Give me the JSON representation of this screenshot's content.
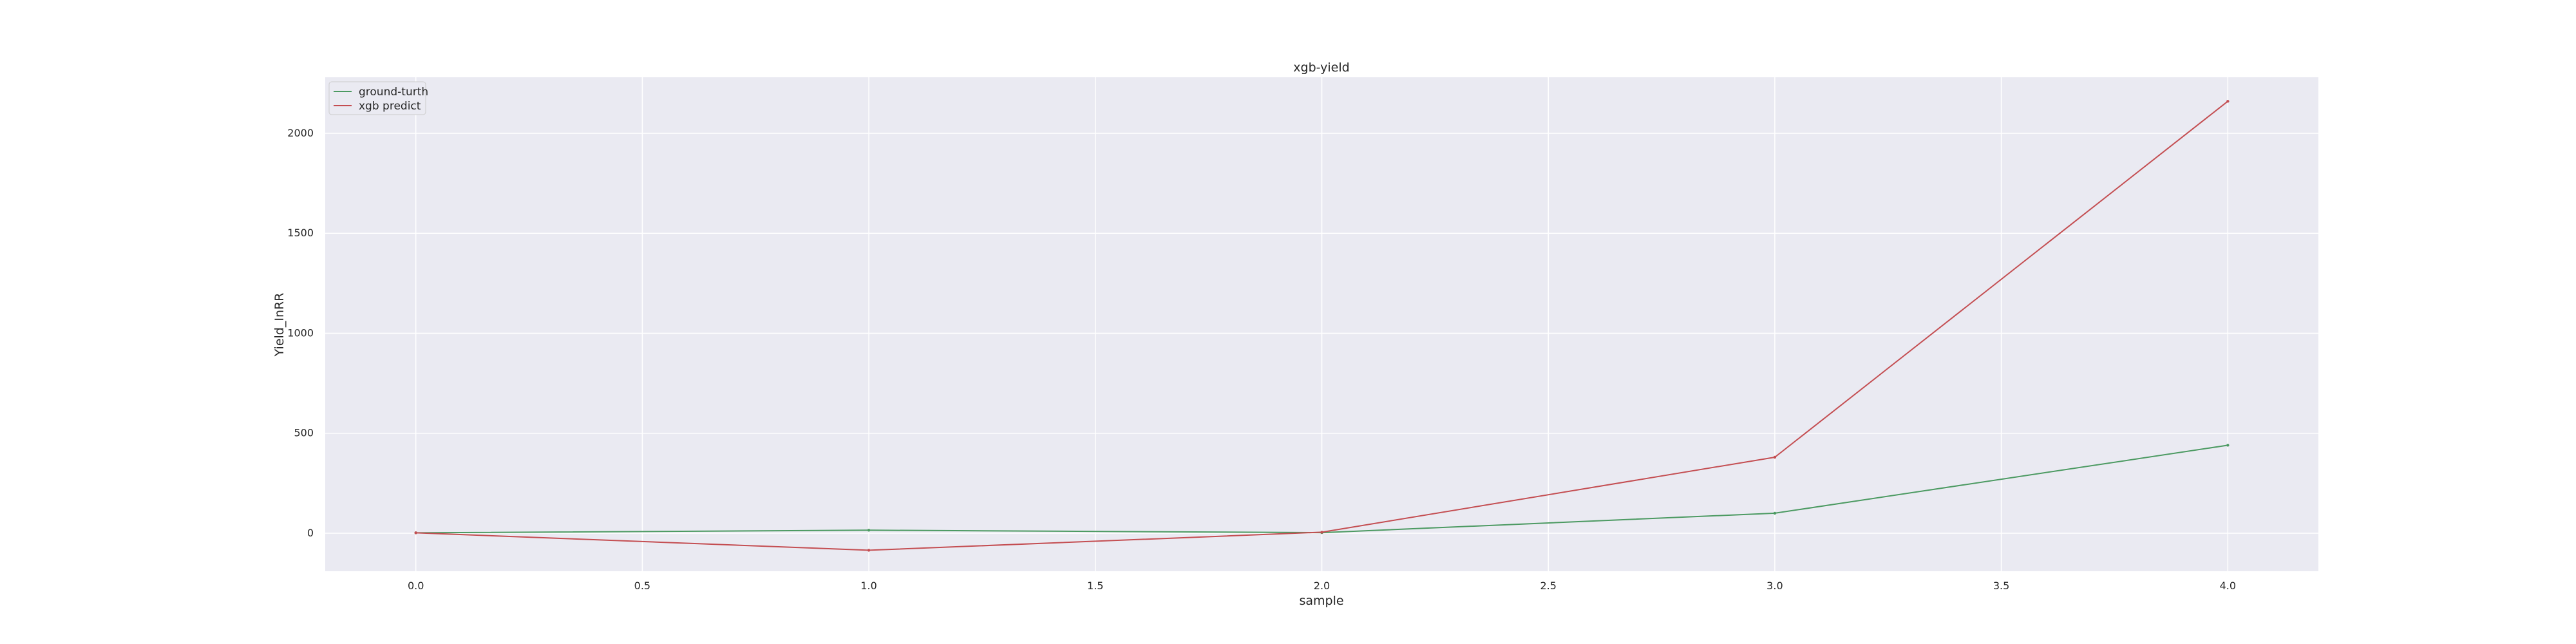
{
  "chart_data": {
    "type": "line",
    "title": "xgb-yield",
    "xlabel": "sample",
    "ylabel": "Yield_InRR",
    "x": [
      0,
      1,
      2,
      3,
      4
    ],
    "xlim": [
      -0.2,
      4.2
    ],
    "ylim": [
      -190,
      2280
    ],
    "xticks": [
      0.0,
      0.5,
      1.0,
      1.5,
      2.0,
      2.5,
      3.0,
      3.5,
      4.0
    ],
    "xtick_labels": [
      "0.0",
      "0.5",
      "1.0",
      "1.5",
      "2.0",
      "2.5",
      "3.0",
      "3.5",
      "4.0"
    ],
    "yticks": [
      0,
      500,
      1000,
      1500,
      2000
    ],
    "ytick_labels": [
      "0",
      "500",
      "1000",
      "1500",
      "2000"
    ],
    "grid": true,
    "legend_position": "top-left",
    "background_color": "#eaeaf2",
    "grid_color": "#ffffff",
    "series": [
      {
        "name": "ground-turth",
        "color": "#4c9a62",
        "values": [
          2,
          15,
          3,
          100,
          440
        ]
      },
      {
        "name": "xgb predict",
        "color": "#c44e52",
        "values": [
          2,
          -85,
          5,
          380,
          2160
        ]
      }
    ]
  }
}
